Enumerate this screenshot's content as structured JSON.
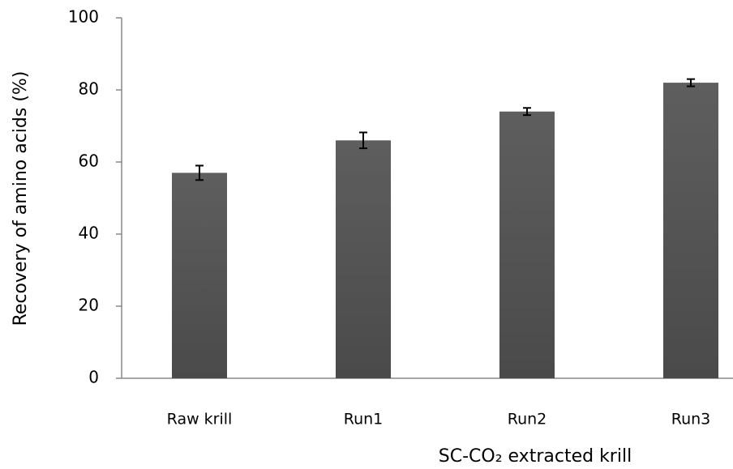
{
  "chart_data": {
    "type": "bar",
    "categories": [
      "Raw krill",
      "Run1",
      "Run2",
      "Run3"
    ],
    "values": [
      57,
      66,
      74,
      82
    ],
    "errors": [
      2,
      2.2,
      1,
      1
    ],
    "color": "#575757",
    "ylabel": "Recovery of amino acids (%)",
    "xlabel": "SC-CO₂ extracted krill",
    "ylim": [
      0,
      100
    ],
    "yticks": [
      0,
      20,
      40,
      60,
      80,
      100
    ],
    "grid": false
  }
}
